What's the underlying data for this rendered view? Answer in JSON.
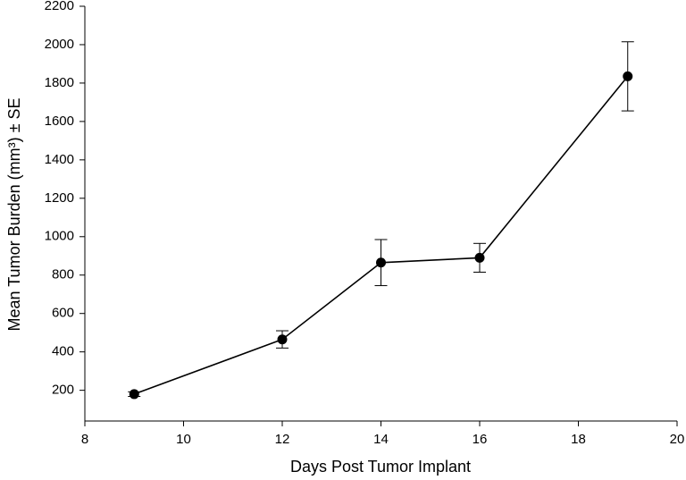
{
  "chart_data": {
    "type": "line",
    "xlabel": "Days Post Tumor Implant",
    "ylabel": "Mean Tumor Burden (mm³) ± SE",
    "x": [
      9,
      12,
      14,
      16,
      19
    ],
    "values": [
      180,
      465,
      865,
      890,
      1835
    ],
    "errors": [
      12,
      45,
      120,
      75,
      180
    ],
    "color": "#000000",
    "xlim": [
      8,
      20
    ],
    "xticks": [
      8,
      10,
      12,
      14,
      16,
      18,
      20
    ],
    "ylim": [
      40,
      2200
    ],
    "yticks": [
      200,
      400,
      600,
      800,
      1000,
      1200,
      1400,
      1600,
      1800,
      2000,
      2200
    ],
    "grid": false
  }
}
